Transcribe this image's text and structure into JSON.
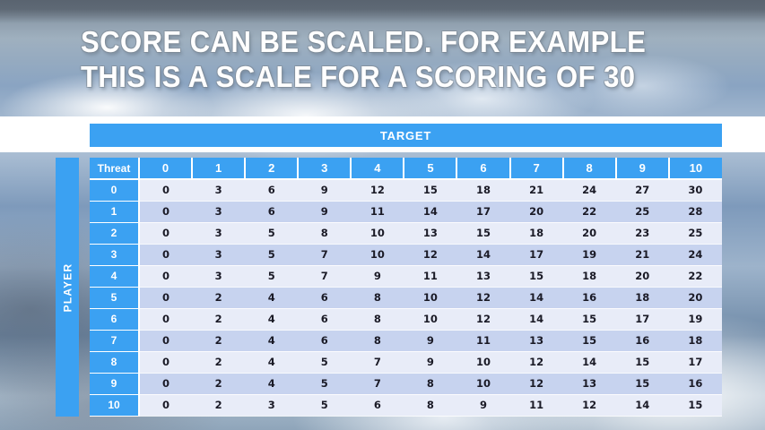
{
  "slide": {
    "title_line1": "SCORE CAN BE SCALED. FOR EXAMPLE",
    "title_line2": "THIS IS A SCALE FOR A SCORING OF 30"
  },
  "table": {
    "target_label": "TARGET",
    "player_label": "PLAYER",
    "corner_label": "Threat",
    "col_headers": [
      "0",
      "1",
      "2",
      "3",
      "4",
      "5",
      "6",
      "7",
      "8",
      "9",
      "10"
    ],
    "rows": [
      {
        "label": "0",
        "values": [
          "0",
          "3",
          "6",
          "9",
          "12",
          "15",
          "18",
          "21",
          "24",
          "27",
          "30"
        ]
      },
      {
        "label": "1",
        "values": [
          "0",
          "3",
          "6",
          "9",
          "11",
          "14",
          "17",
          "20",
          "22",
          "25",
          "28"
        ]
      },
      {
        "label": "2",
        "values": [
          "0",
          "3",
          "5",
          "8",
          "10",
          "13",
          "15",
          "18",
          "20",
          "23",
          "25"
        ]
      },
      {
        "label": "3",
        "values": [
          "0",
          "3",
          "5",
          "7",
          "10",
          "12",
          "14",
          "17",
          "19",
          "21",
          "24"
        ]
      },
      {
        "label": "4",
        "values": [
          "0",
          "3",
          "5",
          "7",
          "9",
          "11",
          "13",
          "15",
          "18",
          "20",
          "22"
        ]
      },
      {
        "label": "5",
        "values": [
          "0",
          "2",
          "4",
          "6",
          "8",
          "10",
          "12",
          "14",
          "16",
          "18",
          "20"
        ]
      },
      {
        "label": "6",
        "values": [
          "0",
          "2",
          "4",
          "6",
          "8",
          "10",
          "12",
          "14",
          "15",
          "17",
          "19"
        ]
      },
      {
        "label": "7",
        "values": [
          "0",
          "2",
          "4",
          "6",
          "8",
          "9",
          "11",
          "13",
          "15",
          "16",
          "18"
        ]
      },
      {
        "label": "8",
        "values": [
          "0",
          "2",
          "4",
          "5",
          "7",
          "9",
          "10",
          "12",
          "14",
          "15",
          "17"
        ]
      },
      {
        "label": "9",
        "values": [
          "0",
          "2",
          "4",
          "5",
          "7",
          "8",
          "10",
          "12",
          "13",
          "15",
          "16"
        ]
      },
      {
        "label": "10",
        "values": [
          "0",
          "2",
          "3",
          "5",
          "6",
          "8",
          "9",
          "11",
          "12",
          "14",
          "15"
        ]
      }
    ]
  },
  "colors": {
    "accent_blue": "#3BA1F2",
    "band_light": "#E8ECF8",
    "band_dark": "#C7D3EF",
    "number_text": "#1A1A26"
  }
}
